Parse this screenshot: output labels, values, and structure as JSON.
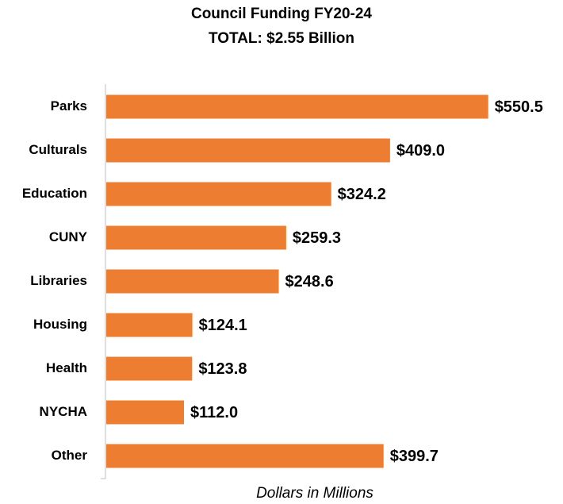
{
  "chart_data": {
    "type": "bar",
    "orientation": "horizontal",
    "title": "Council Funding FY20-24",
    "subtitle": "TOTAL: $2.55 Billion",
    "x_label": "Dollars in Millions",
    "categories": [
      "Parks",
      "Culturals",
      "Education",
      "CUNY",
      "Libraries",
      "Housing",
      "Health",
      "NYCHA",
      "Other"
    ],
    "values": [
      550.5,
      409.0,
      324.2,
      259.3,
      248.6,
      124.1,
      123.8,
      112.0,
      399.7
    ],
    "value_labels": [
      "$550.5",
      "$409.0",
      "$324.2",
      "$259.3",
      "$248.6",
      "$124.1",
      "$123.8",
      "$112.0",
      "$399.7"
    ],
    "color": "#ed7d31",
    "xlim": [
      0,
      600
    ]
  }
}
